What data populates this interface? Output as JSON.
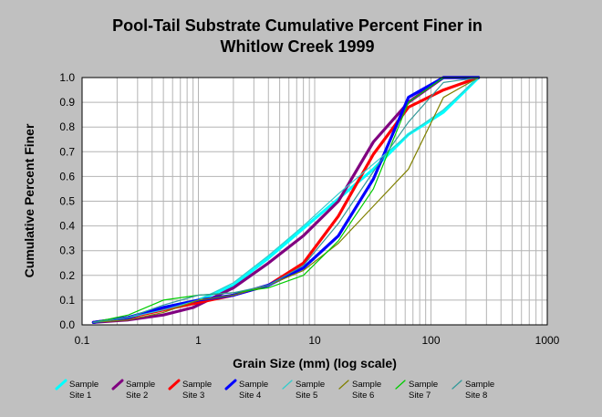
{
  "chart_data": {
    "type": "line",
    "title": "Pool-Tail Substrate Cumulative Percent Finer in",
    "subtitle": "Whitlow Creek 1999",
    "xlabel": "Grain Size (mm) (log scale)",
    "ylabel": "Cumulative Percent Finer",
    "x_scale": "log",
    "xlim": [
      0.1,
      1000
    ],
    "ylim": [
      0.0,
      1.0
    ],
    "grid": true,
    "legend_position": "bottom",
    "x_ticks": [
      0.1,
      1,
      10,
      100,
      1000
    ],
    "x_tick_labels": [
      "0.1",
      "1",
      "10",
      "100",
      "1000"
    ],
    "y_ticks": [
      0.0,
      0.1,
      0.2,
      0.3,
      0.4,
      0.5,
      0.6,
      0.7,
      0.8,
      0.9,
      1.0
    ],
    "y_tick_labels": [
      "0.0",
      "0.1",
      "0.2",
      "0.3",
      "0.4",
      "0.5",
      "0.6",
      "0.7",
      "0.8",
      "0.9",
      "1.0"
    ],
    "series": [
      {
        "name": "Sample Site 1",
        "label_lines": [
          "Sample",
          "Site 1"
        ],
        "color": "#00ffff",
        "width": 3.2,
        "x": [
          0.125,
          0.25,
          0.5,
          1,
          2,
          4,
          8,
          16,
          32,
          64,
          128,
          256
        ],
        "y": [
          0.01,
          0.03,
          0.07,
          0.1,
          0.16,
          0.27,
          0.39,
          0.51,
          0.63,
          0.77,
          0.86,
          1.0
        ]
      },
      {
        "name": "Sample Site 2",
        "label_lines": [
          "Sample",
          "Site 2"
        ],
        "color": "#800080",
        "width": 3.2,
        "x": [
          0.125,
          0.25,
          0.5,
          0.9,
          2,
          4,
          8,
          16,
          32,
          64,
          128,
          256
        ],
        "y": [
          0.01,
          0.02,
          0.04,
          0.07,
          0.15,
          0.25,
          0.36,
          0.5,
          0.74,
          0.9,
          1.0,
          1.0
        ]
      },
      {
        "name": "Sample Site 3",
        "label_lines": [
          "Sample",
          "Site 3"
        ],
        "color": "#ff0000",
        "width": 3.2,
        "x": [
          0.125,
          0.25,
          0.5,
          1,
          2,
          4,
          8,
          16,
          32,
          64,
          128,
          256
        ],
        "y": [
          0.01,
          0.03,
          0.06,
          0.09,
          0.12,
          0.16,
          0.25,
          0.44,
          0.69,
          0.88,
          0.95,
          1.0
        ]
      },
      {
        "name": "Sample Site 4",
        "label_lines": [
          "Sample",
          "Site 4"
        ],
        "color": "#0000ff",
        "width": 3.2,
        "x": [
          0.125,
          0.25,
          0.5,
          1,
          2,
          4,
          8,
          16,
          32,
          64,
          128,
          256
        ],
        "y": [
          0.01,
          0.03,
          0.07,
          0.1,
          0.12,
          0.16,
          0.23,
          0.36,
          0.59,
          0.92,
          1.0,
          1.0
        ]
      },
      {
        "name": "Sample Site 5",
        "label_lines": [
          "Sample",
          "Site 5"
        ],
        "color": "#33cccc",
        "width": 1.2,
        "x": [
          0.125,
          0.25,
          0.5,
          1,
          2,
          4,
          8,
          16,
          32,
          64,
          128,
          256
        ],
        "y": [
          0.01,
          0.03,
          0.06,
          0.1,
          0.17,
          0.28,
          0.4,
          0.53,
          0.65,
          0.77,
          0.87,
          1.0
        ]
      },
      {
        "name": "Sample Site 6",
        "label_lines": [
          "Sample",
          "Site 6"
        ],
        "color": "#808000",
        "width": 1.2,
        "x": [
          0.125,
          0.25,
          0.5,
          1,
          2,
          4,
          8,
          16,
          32,
          64,
          128,
          256
        ],
        "y": [
          0.01,
          0.02,
          0.05,
          0.1,
          0.12,
          0.16,
          0.22,
          0.33,
          0.48,
          0.63,
          0.92,
          1.0
        ]
      },
      {
        "name": "Sample Site 7",
        "label_lines": [
          "Sample",
          "Site 7"
        ],
        "color": "#00cc00",
        "width": 1.2,
        "x": [
          0.125,
          0.25,
          0.5,
          1,
          2,
          4,
          8,
          16,
          32,
          64,
          128,
          256
        ],
        "y": [
          0.01,
          0.04,
          0.1,
          0.12,
          0.13,
          0.15,
          0.2,
          0.34,
          0.55,
          0.9,
          1.0,
          1.0
        ]
      },
      {
        "name": "Sample Site 8",
        "label_lines": [
          "Sample",
          "Site 8"
        ],
        "color": "#339999",
        "width": 1.2,
        "x": [
          0.125,
          0.25,
          0.5,
          1,
          2,
          4,
          8,
          16,
          32,
          64,
          128,
          256
        ],
        "y": [
          0.01,
          0.03,
          0.08,
          0.12,
          0.13,
          0.16,
          0.24,
          0.41,
          0.62,
          0.82,
          0.98,
          1.0
        ]
      }
    ]
  }
}
